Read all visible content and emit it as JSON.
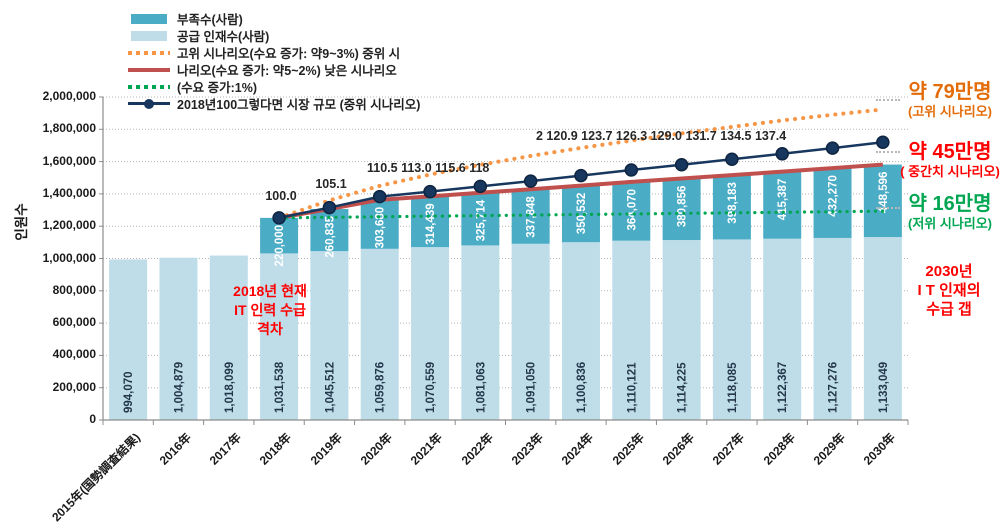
{
  "chart_data": {
    "type": "bar",
    "title": "",
    "ylabel": "인원수",
    "ylim": [
      0,
      2000000
    ],
    "ytick_step": 200000,
    "grid": true,
    "categories": [
      "2015年(国勢調査結果)",
      "2016年",
      "2017年",
      "2018年",
      "2019年",
      "2020年",
      "2021年",
      "2022年",
      "2023年",
      "2024年",
      "2025年",
      "2026年",
      "2027年",
      "2028年",
      "2029年",
      "2030年"
    ],
    "supply_bar": {
      "name": "공급 인재수(사람)",
      "values": [
        994070,
        1004879,
        1018099,
        1031538,
        1045512,
        1059876,
        1070559,
        1081063,
        1091050,
        1100836,
        1110121,
        1114225,
        1118085,
        1122367,
        1127276,
        1133049
      ]
    },
    "shortage_bar": {
      "name": "부족수(사람)",
      "start_index": 3,
      "values": [
        220000,
        260835,
        303680,
        314439,
        325714,
        337848,
        350532,
        364070,
        380856,
        398183,
        415387,
        432270,
        448596
      ]
    },
    "line_high": {
      "name": "고위 시나리오(수요 증가: 약9~3%)",
      "start_index": 3,
      "values": [
        1251538,
        1360000,
        1450000,
        1520000,
        1580000,
        1635000,
        1685000,
        1730000,
        1775000,
        1815000,
        1855000,
        1890000,
        1923000
      ]
    },
    "line_mid": {
      "name": "중위 시나리오(수요 증가: 약5~2%)",
      "start_index": 3,
      "values": [
        1251538,
        1306347,
        1363556,
        1384998,
        1406777,
        1428898,
        1451368,
        1474191,
        1495081,
        1516268,
        1537754,
        1559546,
        1581645
      ]
    },
    "line_low": {
      "name": "낮은 시나리오(수요 증가:1%)",
      "start_index": 3,
      "values": [
        1251538,
        1255000,
        1258500,
        1262000,
        1265400,
        1268900,
        1272400,
        1275800,
        1279300,
        1282800,
        1286200,
        1289700,
        1293000
      ]
    },
    "index_line": {
      "name": "2018년100그렇다면 시장 규모 (중위 시나리오)",
      "start_index": 3,
      "base_value": 1251538,
      "index_values": [
        100.0,
        105.1,
        110.5,
        113.0,
        115.6,
        118.2,
        120.9,
        123.7,
        126.3,
        129.0,
        131.7,
        134.5,
        137.4
      ]
    }
  },
  "colors": {
    "bar_shortage": "#4bacc6",
    "bar_supply": "#bedde9",
    "line_high": "#f79646",
    "line_mid": "#c0504d",
    "line_low": "#00a651",
    "line_index": "#17375e",
    "annotation_orange": "#e36c09",
    "annotation_red": "#ff0000",
    "annotation_green": "#00a651"
  },
  "legend": {
    "items": [
      {
        "label": "부족수(사람)",
        "type": "bar",
        "color": "#4bacc6"
      },
      {
        "label": "공급 인재수(사람)",
        "type": "bar",
        "color": "#bedde9"
      },
      {
        "label": "고위 시나리오(수요 증가: 약9~3%) 중위 시",
        "type": "dots",
        "color": "#f79646"
      },
      {
        "label": "나리오(수요 증가: 약5~2%) 낮은 시나리오",
        "type": "line",
        "color": "#c0504d"
      },
      {
        "label": "(수요 증가:1%)",
        "type": "dots",
        "color": "#00a651"
      },
      {
        "label": "2018년100그렇다면 시장 규모 (중위 시나리오)",
        "type": "line-marker",
        "color": "#17375e"
      }
    ]
  },
  "index_labels": {
    "l2018": "100.0",
    "l2019": "105.1",
    "l2020_2022": "110.5 113.0 115.6 118",
    "l2023_2030": "2 120.9 123.7 126.3 129.0 131.7 134.5 137.4"
  },
  "annotations": {
    "right_high": {
      "line1": "약 79만명",
      "line2": "(고위 시나리오)"
    },
    "right_mid": {
      "line1": "약 45만명",
      "line2": "( 중간치 시나리오)"
    },
    "right_low": {
      "line1": "약 16만명",
      "line2": "(저위 시나리오)"
    },
    "left_note": {
      "line1": "2018년 현재",
      "line2": "IT 인력 수급",
      "line3": "격차"
    },
    "bottom_right_note": {
      "line1": "2030년",
      "line2": "I T 인재의",
      "line3": "수급 갭"
    }
  }
}
